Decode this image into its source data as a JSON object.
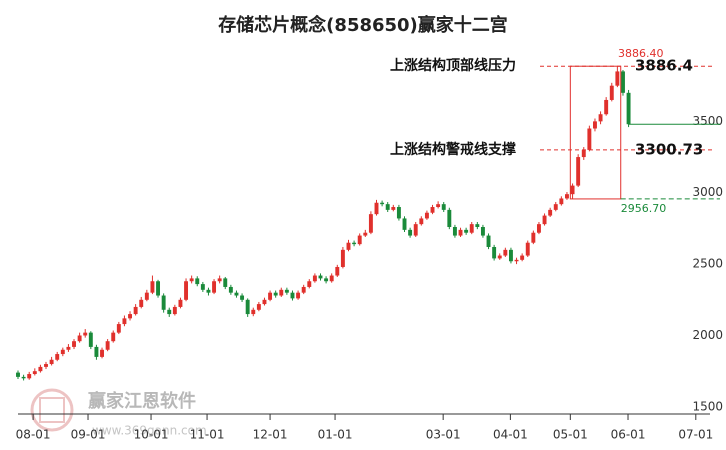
{
  "chart_data": {
    "type": "candlestick",
    "title": "存储芯片概念(858650)赢家十二宫",
    "watermark": "赢家江恩软件",
    "watermark_url": "www.369gann.com",
    "up_color": "#e0302c",
    "down_color": "#1a8a3a",
    "grid": false,
    "xlim": [
      0,
      123
    ],
    "xticks": [
      {
        "value": 2.7,
        "label": "08-01"
      },
      {
        "value": 12.5,
        "label": "09-01"
      },
      {
        "value": 23.75,
        "label": "10-01"
      },
      {
        "value": 33.75,
        "label": "11-01"
      },
      {
        "value": 45,
        "label": "12-01"
      },
      {
        "value": 56.6,
        "label": "01-01"
      },
      {
        "value": 75.9,
        "label": "03-01"
      },
      {
        "value": 87.9,
        "label": "04-01"
      },
      {
        "value": 98.6,
        "label": "05-01"
      },
      {
        "value": 108.9,
        "label": "06-01"
      },
      {
        "value": 121,
        "label": "07-01"
      }
    ],
    "ylim": [
      1450,
      4000
    ],
    "yticks": [
      1500,
      2000,
      2500,
      3000,
      3500
    ],
    "candles": [
      [
        1740,
        1755,
        1695,
        1710
      ],
      [
        1710,
        1725,
        1685,
        1700
      ],
      [
        1700,
        1745,
        1690,
        1730
      ],
      [
        1730,
        1770,
        1720,
        1750
      ],
      [
        1750,
        1795,
        1740,
        1780
      ],
      [
        1780,
        1815,
        1765,
        1800
      ],
      [
        1800,
        1850,
        1790,
        1830
      ],
      [
        1830,
        1885,
        1820,
        1870
      ],
      [
        1870,
        1915,
        1855,
        1900
      ],
      [
        1900,
        1940,
        1885,
        1920
      ],
      [
        1920,
        1975,
        1905,
        1960
      ],
      [
        1960,
        2020,
        1950,
        2000
      ],
      [
        2000,
        2045,
        1985,
        2020
      ],
      [
        2020,
        2030,
        1905,
        1920
      ],
      [
        1920,
        1935,
        1830,
        1850
      ],
      [
        1850,
        1915,
        1840,
        1900
      ],
      [
        1900,
        1975,
        1890,
        1960
      ],
      [
        1960,
        2035,
        1950,
        2020
      ],
      [
        2020,
        2095,
        2010,
        2080
      ],
      [
        2080,
        2140,
        2065,
        2120
      ],
      [
        2120,
        2170,
        2105,
        2150
      ],
      [
        2150,
        2220,
        2140,
        2200
      ],
      [
        2200,
        2270,
        2190,
        2250
      ],
      [
        2250,
        2320,
        2240,
        2300
      ],
      [
        2300,
        2420,
        2290,
        2380
      ],
      [
        2380,
        2390,
        2265,
        2280
      ],
      [
        2280,
        2295,
        2160,
        2180
      ],
      [
        2180,
        2195,
        2130,
        2150
      ],
      [
        2150,
        2215,
        2140,
        2200
      ],
      [
        2200,
        2265,
        2190,
        2250
      ],
      [
        2250,
        2400,
        2240,
        2380
      ],
      [
        2380,
        2420,
        2365,
        2400
      ],
      [
        2400,
        2415,
        2345,
        2360
      ],
      [
        2360,
        2375,
        2305,
        2320
      ],
      [
        2320,
        2335,
        2280,
        2300
      ],
      [
        2300,
        2395,
        2290,
        2380
      ],
      [
        2380,
        2420,
        2365,
        2400
      ],
      [
        2400,
        2410,
        2325,
        2340
      ],
      [
        2340,
        2355,
        2285,
        2300
      ],
      [
        2300,
        2315,
        2265,
        2280
      ],
      [
        2280,
        2295,
        2235,
        2250
      ],
      [
        2250,
        2260,
        2130,
        2150
      ],
      [
        2150,
        2195,
        2135,
        2180
      ],
      [
        2180,
        2235,
        2170,
        2220
      ],
      [
        2220,
        2265,
        2210,
        2250
      ],
      [
        2250,
        2315,
        2240,
        2300
      ],
      [
        2300,
        2315,
        2265,
        2280
      ],
      [
        2280,
        2335,
        2270,
        2320
      ],
      [
        2320,
        2335,
        2285,
        2300
      ],
      [
        2300,
        2315,
        2245,
        2260
      ],
      [
        2260,
        2315,
        2250,
        2300
      ],
      [
        2300,
        2355,
        2290,
        2340
      ],
      [
        2340,
        2395,
        2330,
        2380
      ],
      [
        2380,
        2435,
        2370,
        2420
      ],
      [
        2420,
        2435,
        2385,
        2400
      ],
      [
        2400,
        2415,
        2365,
        2380
      ],
      [
        2380,
        2435,
        2370,
        2420
      ],
      [
        2420,
        2495,
        2410,
        2480
      ],
      [
        2480,
        2620,
        2470,
        2600
      ],
      [
        2600,
        2670,
        2590,
        2650
      ],
      [
        2650,
        2665,
        2625,
        2640
      ],
      [
        2640,
        2715,
        2630,
        2700
      ],
      [
        2700,
        2740,
        2690,
        2720
      ],
      [
        2720,
        2870,
        2710,
        2850
      ],
      [
        2850,
        2950,
        2840,
        2930
      ],
      [
        2930,
        2945,
        2905,
        2920
      ],
      [
        2920,
        2935,
        2865,
        2880
      ],
      [
        2880,
        2915,
        2870,
        2900
      ],
      [
        2900,
        2915,
        2805,
        2820
      ],
      [
        2820,
        2835,
        2725,
        2740
      ],
      [
        2740,
        2755,
        2685,
        2700
      ],
      [
        2700,
        2795,
        2690,
        2780
      ],
      [
        2780,
        2835,
        2770,
        2820
      ],
      [
        2820,
        2875,
        2810,
        2860
      ],
      [
        2860,
        2915,
        2850,
        2900
      ],
      [
        2900,
        2940,
        2890,
        2920
      ],
      [
        2920,
        2935,
        2865,
        2880
      ],
      [
        2880,
        2895,
        2745,
        2760
      ],
      [
        2760,
        2775,
        2685,
        2700
      ],
      [
        2700,
        2755,
        2690,
        2740
      ],
      [
        2740,
        2755,
        2705,
        2720
      ],
      [
        2720,
        2795,
        2710,
        2780
      ],
      [
        2780,
        2795,
        2745,
        2760
      ],
      [
        2760,
        2775,
        2685,
        2700
      ],
      [
        2700,
        2715,
        2605,
        2620
      ],
      [
        2620,
        2635,
        2525,
        2540
      ],
      [
        2540,
        2575,
        2530,
        2560
      ],
      [
        2560,
        2615,
        2550,
        2600
      ],
      [
        2600,
        2615,
        2505,
        2520
      ],
      [
        2520,
        2545,
        2500,
        2530
      ],
      [
        2530,
        2575,
        2520,
        2560
      ],
      [
        2560,
        2665,
        2550,
        2650
      ],
      [
        2650,
        2735,
        2640,
        2720
      ],
      [
        2720,
        2795,
        2710,
        2780
      ],
      [
        2780,
        2855,
        2770,
        2840
      ],
      [
        2840,
        2895,
        2830,
        2880
      ],
      [
        2880,
        2935,
        2870,
        2920
      ],
      [
        2920,
        2975,
        2910,
        2960
      ],
      [
        2960,
        3005,
        2950,
        2990
      ],
      [
        2990,
        3065,
        2956.7,
        3050
      ],
      [
        3050,
        3270,
        3040,
        3250
      ],
      [
        3250,
        3320,
        3230,
        3300
      ],
      [
        3300,
        3470,
        3290,
        3450
      ],
      [
        3450,
        3520,
        3430,
        3500
      ],
      [
        3500,
        3570,
        3480,
        3550
      ],
      [
        3550,
        3670,
        3540,
        3650
      ],
      [
        3650,
        3770,
        3640,
        3750
      ],
      [
        3750,
        3886.4,
        3740,
        3850
      ],
      [
        3850,
        3860,
        3680,
        3700
      ],
      [
        3700,
        3720,
        3460,
        3480
      ]
    ],
    "box": {
      "x": [
        98.6,
        107.6
      ],
      "high": 3886.4,
      "low": 2956.7,
      "high_label": "3886.40",
      "low_label": "2956.70"
    },
    "annotations": [
      {
        "text": "上涨结构顶部线压力",
        "value": 3886.4,
        "value_label": "3886.4"
      },
      {
        "text": "上涨结构警戒线支撑",
        "value": 3300.73,
        "value_label": "3300.73"
      }
    ]
  }
}
